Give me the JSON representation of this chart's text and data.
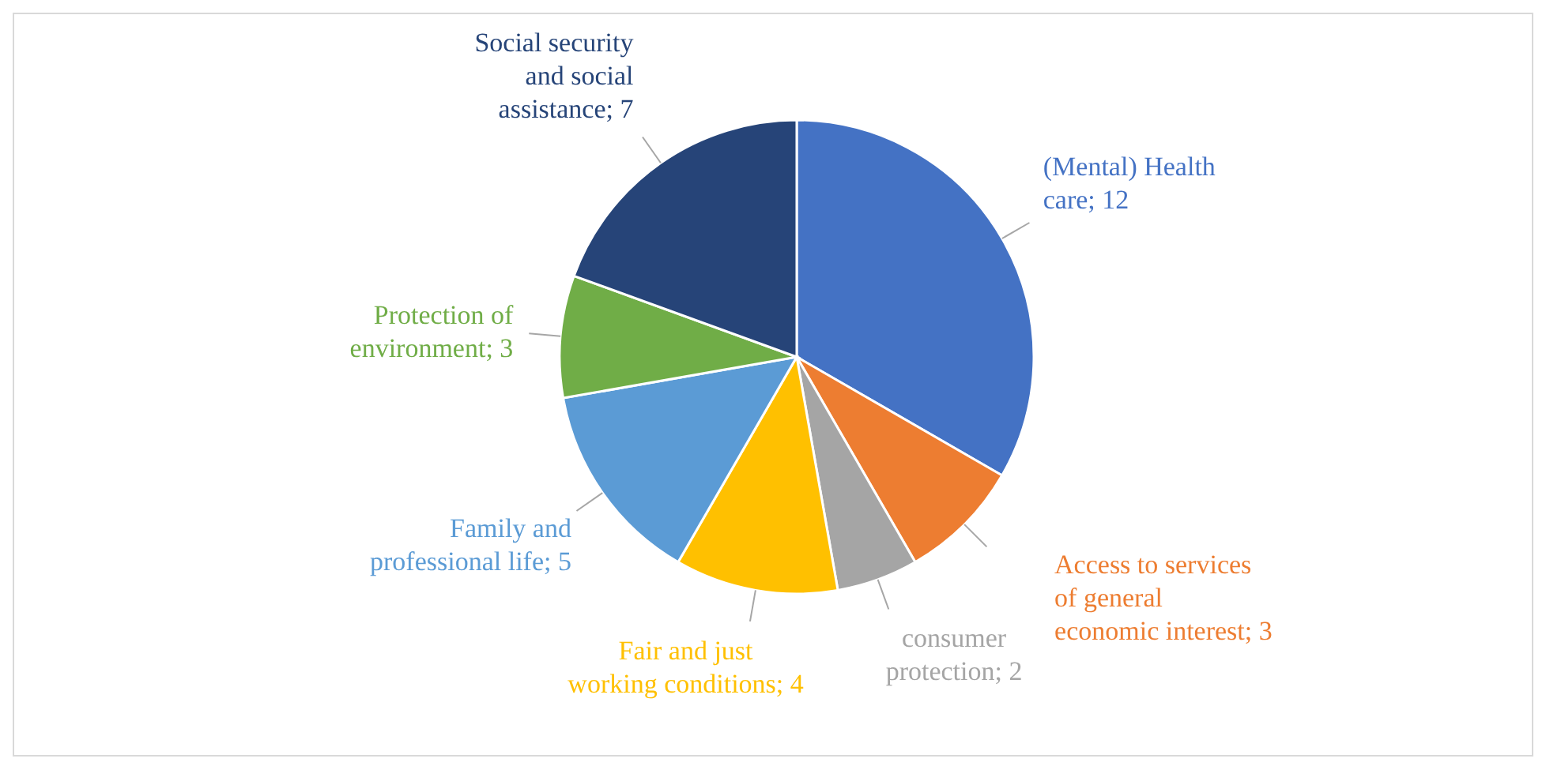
{
  "chart_data": {
    "type": "pie",
    "categories": [
      "(Mental) Health care",
      "Access to services of general economic interest",
      "consumer protection",
      "Fair and just working conditions",
      "Family and professional life",
      "Protection of environment",
      "Social security and social assistance"
    ],
    "values": [
      12,
      3,
      2,
      4,
      5,
      3,
      7
    ],
    "colors": [
      "#4472c4",
      "#ed7d31",
      "#a5a5a5",
      "#ffc000",
      "#5b9bd5",
      "#70ad47",
      "#264478"
    ],
    "value_labels": [
      "; 12",
      "; 3",
      "; 2",
      "; 4",
      "; 5",
      "; 3",
      "; 7"
    ]
  }
}
